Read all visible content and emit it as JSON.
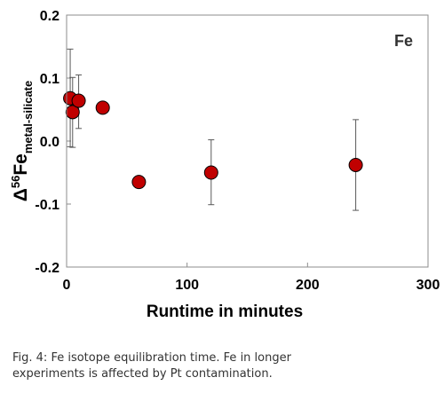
{
  "chart_data": {
    "type": "scatter",
    "xlabel": "Runtime in minutes",
    "ylabel": {
      "base": "Δ",
      "sup": "56",
      "main": "Fe",
      "sub": "metal-silicate"
    },
    "annotation": "Fe",
    "xlim": [
      0,
      300
    ],
    "ylim": [
      -0.2,
      0.2
    ],
    "x_ticks": [
      0,
      100,
      200,
      300
    ],
    "y_ticks": [
      -0.2,
      -0.1,
      0.0,
      0.1,
      0.2
    ],
    "x_tick_labels": [
      "0",
      "100",
      "200",
      "300"
    ],
    "y_tick_labels": [
      "-0.2",
      "-0.1",
      "0.0",
      "0.1",
      "0.2"
    ],
    "grid": false,
    "marker_color": "#c00000",
    "points": [
      {
        "x": 3,
        "y": 0.068,
        "yerr_low": 0.077,
        "yerr_high": 0.078
      },
      {
        "x": 5,
        "y": 0.046,
        "yerr_low": 0.056,
        "yerr_high": 0.055
      },
      {
        "x": 10,
        "y": 0.064,
        "yerr_low": 0.044,
        "yerr_high": 0.041
      },
      {
        "x": 30,
        "y": 0.053,
        "yerr_low": 0,
        "yerr_high": 0
      },
      {
        "x": 60,
        "y": -0.065,
        "yerr_low": 0,
        "yerr_high": 0
      },
      {
        "x": 120,
        "y": -0.05,
        "yerr_low": 0.051,
        "yerr_high": 0.052
      },
      {
        "x": 240,
        "y": -0.038,
        "yerr_low": 0.072,
        "yerr_high": 0.072
      }
    ]
  },
  "caption": {
    "line1": "Fig. 4: Fe isotope equilibration time. Fe in longer",
    "line2": "experiments is affected by Pt contamination."
  }
}
